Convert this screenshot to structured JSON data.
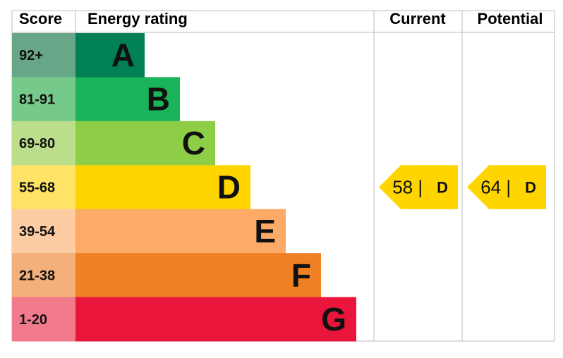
{
  "chart_data": {
    "type": "bar",
    "headers": {
      "score": "Score",
      "rating": "Energy rating",
      "current": "Current",
      "potential": "Potential"
    },
    "bands": [
      {
        "letter": "A",
        "range": "92+",
        "color": "#008054",
        "score_color": "#67a686"
      },
      {
        "letter": "B",
        "range": "81-91",
        "color": "#19b459",
        "score_color": "#75c98b"
      },
      {
        "letter": "C",
        "range": "69-80",
        "color": "#8dce46",
        "score_color": "#bade8c"
      },
      {
        "letter": "D",
        "range": "55-68",
        "color": "#ffd500",
        "score_color": "#ffe366"
      },
      {
        "letter": "E",
        "range": "39-54",
        "color": "#fcaa65",
        "score_color": "#fdcca3"
      },
      {
        "letter": "F",
        "range": "21-38",
        "color": "#ef8023",
        "score_color": "#f4b07a"
      },
      {
        "letter": "G",
        "range": "1-20",
        "color": "#e9153b",
        "score_color": "#f27a8d"
      }
    ],
    "current": {
      "value": 58,
      "letter": "D",
      "label": "58 |",
      "color": "#ffd500"
    },
    "potential": {
      "value": 64,
      "letter": "D",
      "label": "64 |",
      "color": "#ffd500"
    }
  }
}
